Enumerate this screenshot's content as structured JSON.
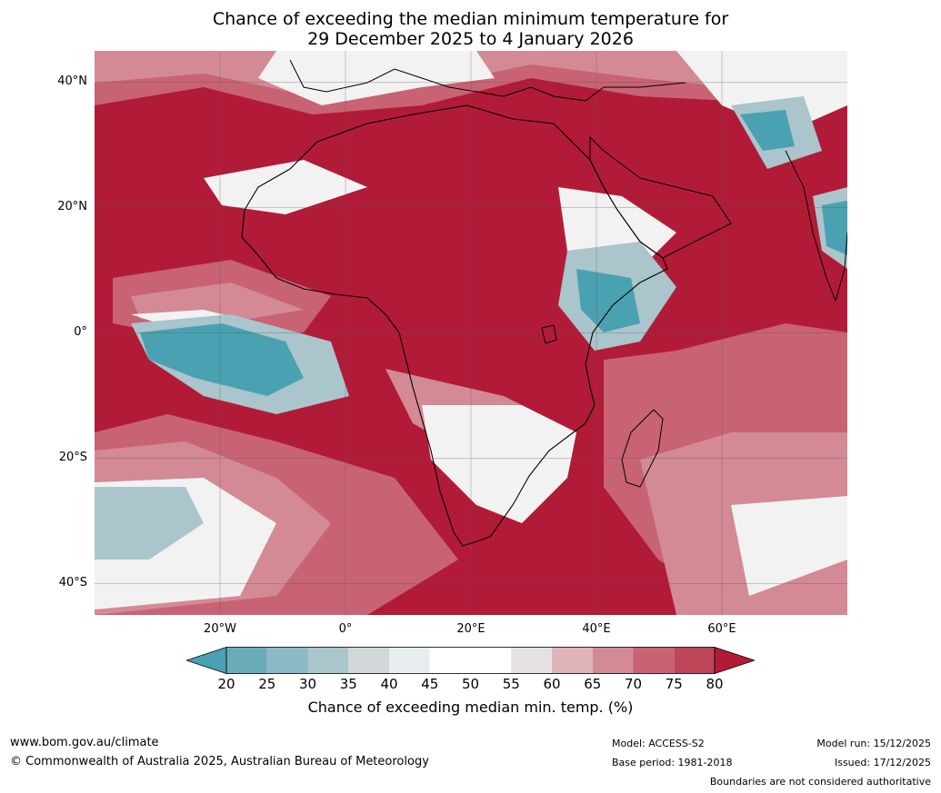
{
  "title": {
    "line1": "Chance of exceeding the median minimum temperature for",
    "line2": "29 December 2025 to 4 January 2026"
  },
  "map": {
    "lat_labels": [
      "40°N",
      "20°N",
      "0°",
      "20°S",
      "40°S"
    ],
    "lon_labels": [
      "20°W",
      "0°",
      "20°E",
      "40°E",
      "60°E"
    ],
    "extent": {
      "lon": [
        -40,
        80
      ],
      "lat": [
        -45,
        45
      ]
    }
  },
  "legend": {
    "ticks": [
      "20",
      "25",
      "30",
      "35",
      "40",
      "45",
      "50",
      "55",
      "60",
      "65",
      "70",
      "75",
      "80"
    ],
    "colors": [
      "#4aa1b2",
      "#6aabb8",
      "#8cbac6",
      "#aac5cb",
      "#d2d7da",
      "#e8edef",
      "#ffffff",
      "#ffffff",
      "#e6e1e3",
      "#dfb4ba",
      "#d38a95",
      "#c86374",
      "#bf4558",
      "#b21b37"
    ],
    "label": "Chance of exceeding median min. temp. (%)"
  },
  "footer": {
    "url": "www.bom.gov.au/climate",
    "copyright": "© Commonwealth of Australia 2025, Australian Bureau of Meteorology",
    "model": "Model: ACCESS-S2",
    "base_period": "Base period: 1981-2018",
    "model_run": "Model run: 15/12/2025",
    "issued": "Issued: 17/12/2025",
    "disclaimer": "Boundaries are not considered authoritative"
  }
}
